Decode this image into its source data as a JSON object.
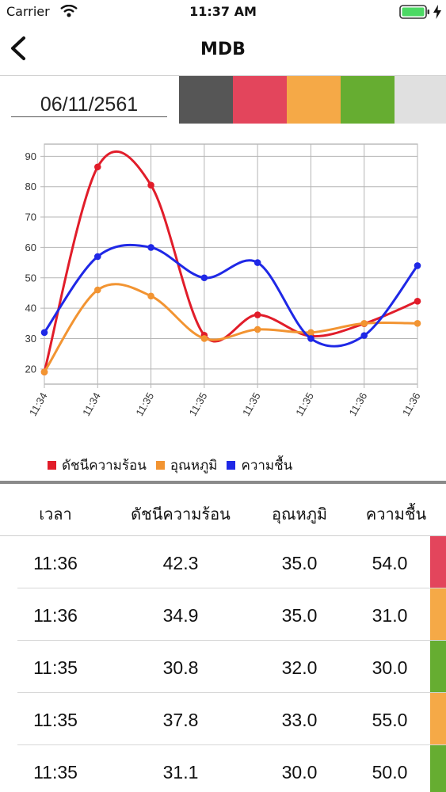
{
  "status_bar": {
    "carrier": "Carrier",
    "time": "11:37 AM"
  },
  "nav": {
    "title": "MDB"
  },
  "date": "06/11/2561",
  "color_scale": [
    "#565656",
    "#e3455c",
    "#f5a947",
    "#66ad31",
    "#e0e0e0"
  ],
  "chart_data": {
    "type": "line",
    "x": [
      "11:34",
      "11:34",
      "11:35",
      "11:35",
      "11:35",
      "11:35",
      "11:36",
      "11:36"
    ],
    "series": [
      {
        "name": "ดัชนีความร้อน",
        "color": "#e11d2a",
        "values": [
          19,
          86.5,
          80.5,
          31.1,
          37.8,
          30.8,
          34.9,
          42.3
        ]
      },
      {
        "name": "อุณหภูมิ",
        "color": "#f29432",
        "values": [
          19,
          46,
          44,
          30,
          33,
          32,
          35,
          35
        ]
      },
      {
        "name": "ความชื้น",
        "color": "#1f28e6",
        "values": [
          32,
          57,
          60,
          50,
          55,
          30,
          31,
          54
        ]
      }
    ],
    "yticks": [
      20,
      30,
      40,
      50,
      60,
      70,
      80,
      90
    ],
    "ylim": [
      15,
      94
    ],
    "grid": true,
    "legend": "bottom"
  },
  "table": {
    "headers": [
      "เวลา",
      "ดัชนีความร้อน",
      "อุณหภูมิ",
      "ความชื้น"
    ],
    "rows": [
      {
        "time": "11:36",
        "heat_index": "42.3",
        "temperature": "35.0",
        "humidity": "54.0",
        "color": "#e3455c"
      },
      {
        "time": "11:36",
        "heat_index": "34.9",
        "temperature": "35.0",
        "humidity": "31.0",
        "color": "#f5a947"
      },
      {
        "time": "11:35",
        "heat_index": "30.8",
        "temperature": "32.0",
        "humidity": "30.0",
        "color": "#66ad31"
      },
      {
        "time": "11:35",
        "heat_index": "37.8",
        "temperature": "33.0",
        "humidity": "55.0",
        "color": "#f5a947"
      },
      {
        "time": "11:35",
        "heat_index": "31.1",
        "temperature": "30.0",
        "humidity": "50.0",
        "color": "#66ad31"
      }
    ]
  }
}
